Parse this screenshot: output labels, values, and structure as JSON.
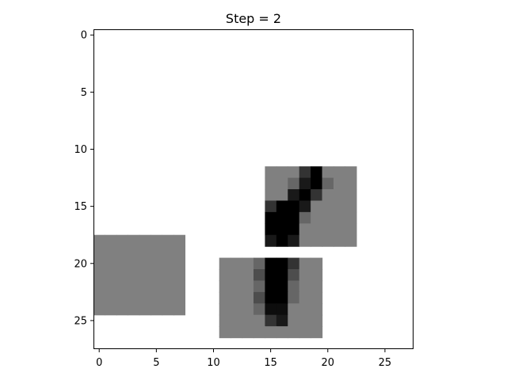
{
  "chart_data": {
    "type": "heatmap",
    "title": "Step = 2",
    "xlabel": "",
    "ylabel": "",
    "colormap": "gray_r",
    "grid": false,
    "shape": [
      28,
      28
    ],
    "xlim": [
      -0.5,
      27.5
    ],
    "ylim": [
      27.5,
      -0.5
    ],
    "xticks": [
      0,
      5,
      10,
      15,
      20,
      25
    ],
    "yticks": [
      0,
      5,
      10,
      15,
      20,
      25
    ],
    "background_value": 0,
    "regions": [
      {
        "name": "patch-1",
        "row0": 12,
        "col0": 15,
        "values": [
          [
            0.5,
            0.5,
            0.5,
            0.8,
            1.0,
            0.5,
            0.5,
            0.5
          ],
          [
            0.5,
            0.5,
            0.6,
            0.9,
            1.0,
            0.6,
            0.5,
            0.5
          ],
          [
            0.5,
            0.5,
            0.9,
            1.0,
            0.8,
            0.5,
            0.5,
            0.5
          ],
          [
            0.8,
            1.0,
            1.0,
            0.9,
            0.5,
            0.5,
            0.5,
            0.5
          ],
          [
            1.0,
            1.0,
            1.0,
            0.6,
            0.5,
            0.5,
            0.5,
            0.5
          ],
          [
            1.0,
            1.0,
            1.0,
            0.5,
            0.5,
            0.5,
            0.5,
            0.5
          ],
          [
            0.9,
            1.0,
            0.9,
            0.5,
            0.5,
            0.5,
            0.5,
            0.5
          ]
        ]
      },
      {
        "name": "patch-2",
        "row0": 18,
        "col0": 0,
        "values": [
          [
            0.5,
            0.5,
            0.5,
            0.5,
            0.5,
            0.5,
            0.5,
            0.5
          ],
          [
            0.5,
            0.5,
            0.5,
            0.5,
            0.5,
            0.5,
            0.5,
            0.5
          ],
          [
            0.5,
            0.5,
            0.5,
            0.5,
            0.5,
            0.5,
            0.5,
            0.5
          ],
          [
            0.5,
            0.5,
            0.5,
            0.5,
            0.5,
            0.5,
            0.5,
            0.5
          ],
          [
            0.5,
            0.5,
            0.5,
            0.5,
            0.5,
            0.5,
            0.5,
            0.5
          ],
          [
            0.5,
            0.5,
            0.5,
            0.5,
            0.5,
            0.5,
            0.5,
            0.5
          ],
          [
            0.5,
            0.5,
            0.5,
            0.5,
            0.5,
            0.5,
            0.5,
            0.5
          ]
        ]
      },
      {
        "name": "patch-3",
        "row0": 20,
        "col0": 11,
        "values": [
          [
            0.5,
            0.5,
            0.5,
            0.6,
            1.0,
            1.0,
            0.8,
            0.5,
            0.5
          ],
          [
            0.5,
            0.5,
            0.5,
            0.7,
            1.0,
            1.0,
            0.7,
            0.5,
            0.5
          ],
          [
            0.5,
            0.5,
            0.5,
            0.6,
            1.0,
            1.0,
            0.6,
            0.5,
            0.5
          ],
          [
            0.5,
            0.5,
            0.5,
            0.7,
            1.0,
            1.0,
            0.6,
            0.5,
            0.5
          ],
          [
            0.5,
            0.5,
            0.5,
            0.6,
            0.95,
            0.95,
            0.5,
            0.5,
            0.5
          ],
          [
            0.5,
            0.5,
            0.5,
            0.5,
            0.8,
            0.9,
            0.5,
            0.5,
            0.5
          ],
          [
            0.5,
            0.5,
            0.5,
            0.5,
            0.5,
            0.5,
            0.5,
            0.5,
            0.5
          ]
        ]
      }
    ]
  }
}
